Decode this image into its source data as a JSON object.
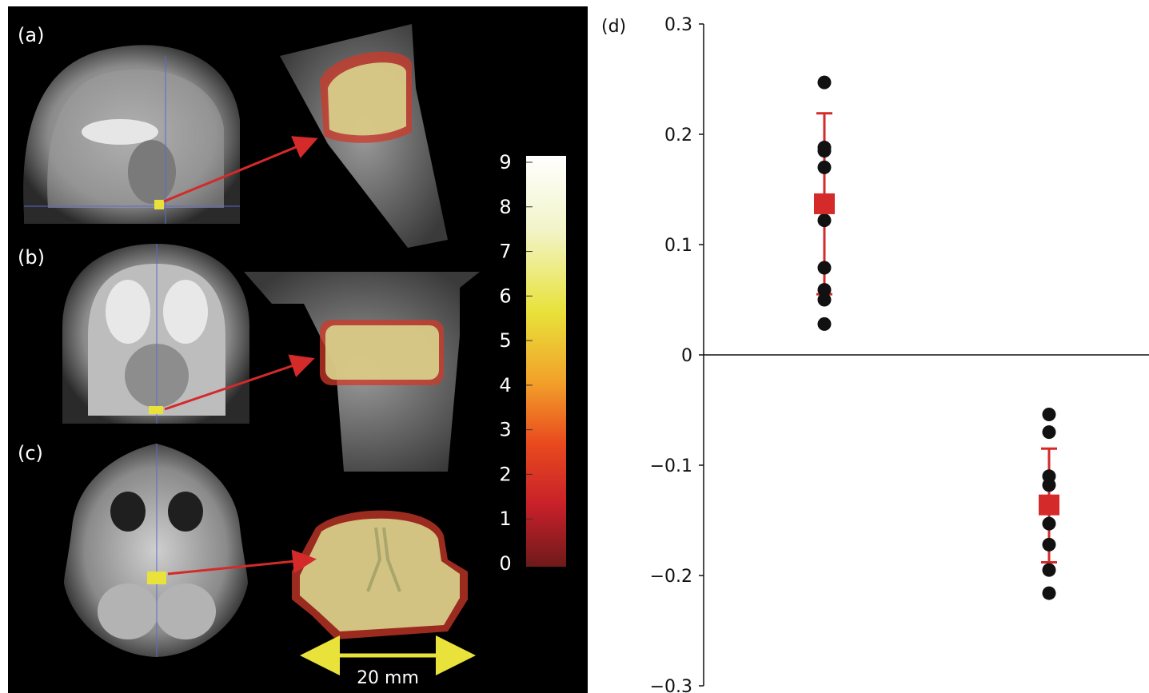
{
  "panels": {
    "a": "(a)",
    "b": "(b)",
    "c": "(c)",
    "d": "(d)"
  },
  "colorbar": {
    "ticks": [
      "0",
      "1",
      "2",
      "3",
      "4",
      "5",
      "6",
      "7",
      "8",
      "9"
    ],
    "colors": [
      "#6e1a1a",
      "#c8202a",
      "#e94a1e",
      "#f2a12a",
      "#e8e23a",
      "#f2f4c8",
      "#ffffff"
    ]
  },
  "scale_bar": {
    "label": "20 mm",
    "color": "#e8e23a"
  },
  "arrow_color": "#d42a2a",
  "chart_data": {
    "type": "scatter",
    "title": "",
    "xlabel": "",
    "ylabel": "",
    "ylim": [
      -0.3,
      0.3
    ],
    "yticks": [
      0.3,
      0.2,
      0.1,
      0,
      -0.1,
      -0.2,
      -0.3
    ],
    "ytick_labels": [
      "0.3",
      "0.2",
      "0.1",
      "0",
      "−0.1",
      "−0.2",
      "−0.3"
    ],
    "groups": [
      {
        "x": 1,
        "points": [
          0.247,
          0.188,
          0.185,
          0.17,
          0.122,
          0.079,
          0.059,
          0.05,
          0.028
        ],
        "mean": 0.137,
        "error_upper": 0.219,
        "error_lower": 0.055
      },
      {
        "x": 2,
        "points": [
          -0.054,
          -0.07,
          -0.11,
          -0.118,
          -0.153,
          -0.172,
          -0.195,
          -0.216
        ],
        "mean": -0.136,
        "error_upper": -0.085,
        "error_lower": -0.188
      }
    ],
    "point_color": "#111111",
    "mean_color": "#d42a2a"
  }
}
